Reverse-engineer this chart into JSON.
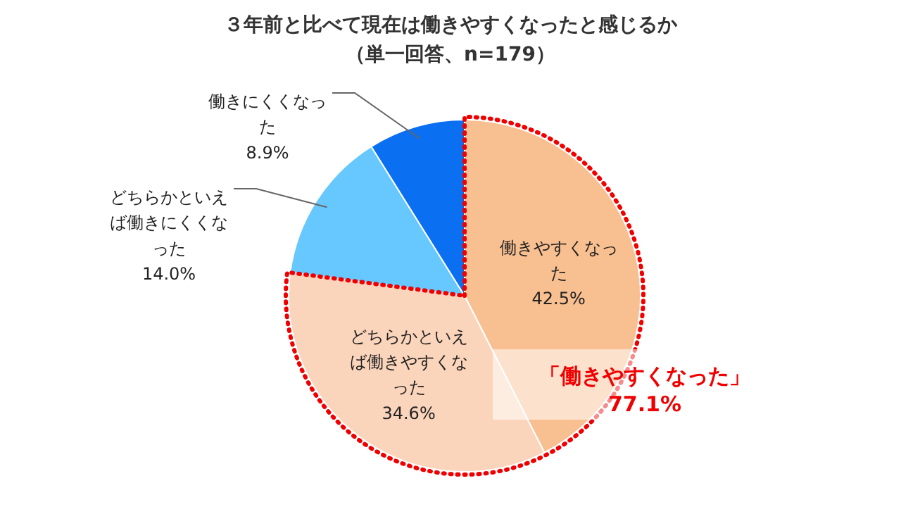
{
  "chart_data": {
    "type": "pie",
    "title": "３年前と比べて現在は働きやすくなったと感じるか",
    "subtitle": "（単一回答、n=179）",
    "categories": [
      "働きやすくなった",
      "どちらかといえば働きやすくなった",
      "どちらかといえば働きにくくなった",
      "働きにくくなった"
    ],
    "values": [
      42.5,
      34.6,
      14.0,
      8.9
    ],
    "colors": [
      "#f8bf90",
      "#fbd5bb",
      "#66c8ff",
      "#0a6ff0"
    ],
    "value_labels": [
      "42.5%",
      "34.6%",
      "14.0%",
      "8.9%"
    ],
    "annotations": [
      "「働きやすくなった」",
      "77.1%"
    ]
  }
}
